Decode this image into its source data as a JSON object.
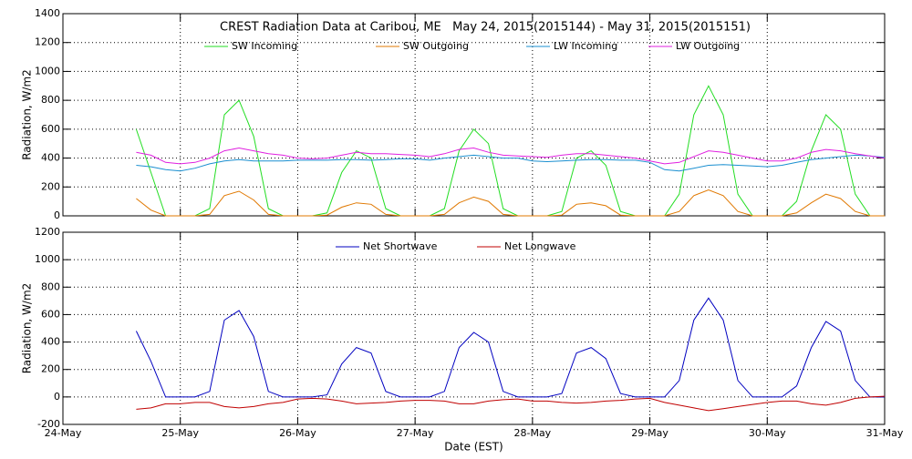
{
  "chart_data": [
    {
      "type": "line",
      "title": "CREST Radiation Data at Caribou, ME   May 24, 2015(2015144) - May 31, 2015(2015151)",
      "y_label": "Radiation, W/m2",
      "xlim": [
        0,
        7
      ],
      "xticks": [
        0,
        1,
        2,
        3,
        4,
        5,
        6,
        7
      ],
      "ylim": [
        0,
        1400
      ],
      "yticks": [
        0,
        200,
        400,
        600,
        800,
        1000,
        1200,
        1400
      ],
      "grid": true,
      "x": [
        0.625,
        0.75,
        0.875,
        1,
        1.125,
        1.25,
        1.375,
        1.5,
        1.625,
        1.75,
        1.875,
        2,
        2.125,
        2.25,
        2.375,
        2.5,
        2.625,
        2.75,
        2.875,
        3,
        3.125,
        3.25,
        3.375,
        3.5,
        3.625,
        3.75,
        3.875,
        4,
        4.125,
        4.25,
        4.375,
        4.5,
        4.625,
        4.75,
        4.875,
        5,
        5.125,
        5.25,
        5.375,
        5.5,
        5.625,
        5.75,
        5.875,
        6,
        6.125,
        6.25,
        6.375,
        6.5,
        6.625,
        6.75,
        6.875,
        7
      ],
      "series": [
        {
          "name": "SW Incoming",
          "color": "#22dd22",
          "values": [
            600,
            300,
            0,
            0,
            0,
            50,
            700,
            800,
            550,
            50,
            0,
            0,
            0,
            20,
            300,
            450,
            400,
            50,
            0,
            0,
            0,
            50,
            450,
            600,
            500,
            50,
            0,
            0,
            0,
            30,
            400,
            450,
            350,
            30,
            0,
            0,
            0,
            150,
            700,
            900,
            700,
            150,
            0,
            0,
            0,
            100,
            450,
            700,
            600,
            150,
            0,
            0
          ]
        },
        {
          "name": "SW Outgoing",
          "color": "#e07800",
          "values": [
            120,
            40,
            0,
            0,
            0,
            10,
            140,
            170,
            110,
            10,
            0,
            0,
            0,
            5,
            60,
            90,
            80,
            10,
            0,
            0,
            0,
            10,
            90,
            130,
            100,
            10,
            0,
            0,
            0,
            5,
            80,
            90,
            70,
            5,
            0,
            0,
            0,
            30,
            140,
            180,
            140,
            30,
            0,
            0,
            0,
            20,
            90,
            150,
            120,
            30,
            0,
            0
          ]
        },
        {
          "name": "LW Incoming",
          "color": "#1a8fd0",
          "values": [
            350,
            340,
            320,
            310,
            330,
            360,
            380,
            390,
            380,
            380,
            380,
            385,
            385,
            385,
            390,
            390,
            385,
            390,
            395,
            395,
            385,
            400,
            410,
            420,
            410,
            400,
            400,
            380,
            375,
            380,
            385,
            390,
            390,
            385,
            385,
            370,
            320,
            310,
            330,
            350,
            355,
            350,
            345,
            340,
            350,
            370,
            390,
            400,
            410,
            420,
            415,
            405
          ]
        },
        {
          "name": "LW Outgoing",
          "color": "#e020e0",
          "values": [
            440,
            420,
            370,
            360,
            370,
            400,
            450,
            470,
            450,
            430,
            420,
            400,
            395,
            400,
            420,
            440,
            430,
            430,
            425,
            420,
            410,
            430,
            460,
            470,
            440,
            420,
            415,
            410,
            405,
            420,
            430,
            430,
            420,
            410,
            400,
            380,
            360,
            370,
            410,
            450,
            440,
            420,
            400,
            380,
            380,
            400,
            440,
            460,
            450,
            430,
            415,
            400
          ]
        }
      ]
    },
    {
      "type": "line",
      "y_label": "Radiation, W/m2",
      "x_label": "Date (EST)",
      "xlim": [
        0,
        7
      ],
      "xticks": [
        {
          "value": 0,
          "label": "24-May"
        },
        {
          "value": 1,
          "label": "25-May"
        },
        {
          "value": 2,
          "label": "26-May"
        },
        {
          "value": 3,
          "label": "27-May"
        },
        {
          "value": 4,
          "label": "28-May"
        },
        {
          "value": 5,
          "label": "29-May"
        },
        {
          "value": 6,
          "label": "30-May"
        },
        {
          "value": 7,
          "label": "31-May"
        }
      ],
      "ylim": [
        -200,
        1200
      ],
      "yticks": [
        -200,
        0,
        200,
        400,
        600,
        800,
        1000,
        1200
      ],
      "grid": true,
      "x": [
        0.625,
        0.75,
        0.875,
        1,
        1.125,
        1.25,
        1.375,
        1.5,
        1.625,
        1.75,
        1.875,
        2,
        2.125,
        2.25,
        2.375,
        2.5,
        2.625,
        2.75,
        2.875,
        3,
        3.125,
        3.25,
        3.375,
        3.5,
        3.625,
        3.75,
        3.875,
        4,
        4.125,
        4.25,
        4.375,
        4.5,
        4.625,
        4.75,
        4.875,
        5,
        5.125,
        5.25,
        5.375,
        5.5,
        5.625,
        5.75,
        5.875,
        6,
        6.125,
        6.25,
        6.375,
        6.5,
        6.625,
        6.75,
        6.875,
        7
      ],
      "series": [
        {
          "name": "Net Shortwave",
          "color": "#0000c0",
          "values": [
            480,
            260,
            0,
            0,
            0,
            40,
            560,
            630,
            440,
            40,
            0,
            0,
            0,
            15,
            240,
            360,
            320,
            40,
            0,
            0,
            0,
            40,
            360,
            470,
            400,
            40,
            0,
            0,
            0,
            25,
            320,
            360,
            280,
            25,
            0,
            0,
            0,
            120,
            560,
            720,
            560,
            120,
            0,
            0,
            0,
            80,
            360,
            550,
            480,
            120,
            0,
            0
          ]
        },
        {
          "name": "Net Longwave",
          "color": "#c00000",
          "values": [
            -90,
            -80,
            -50,
            -50,
            -40,
            -40,
            -70,
            -80,
            -70,
            -50,
            -40,
            -15,
            -10,
            -15,
            -30,
            -50,
            -45,
            -40,
            -30,
            -25,
            -25,
            -30,
            -50,
            -50,
            -30,
            -20,
            -15,
            -30,
            -30,
            -40,
            -45,
            -40,
            -30,
            -25,
            -15,
            -10,
            -40,
            -60,
            -80,
            -100,
            -85,
            -70,
            -55,
            -40,
            -30,
            -30,
            -50,
            -60,
            -40,
            -10,
            0,
            5
          ]
        }
      ]
    }
  ]
}
